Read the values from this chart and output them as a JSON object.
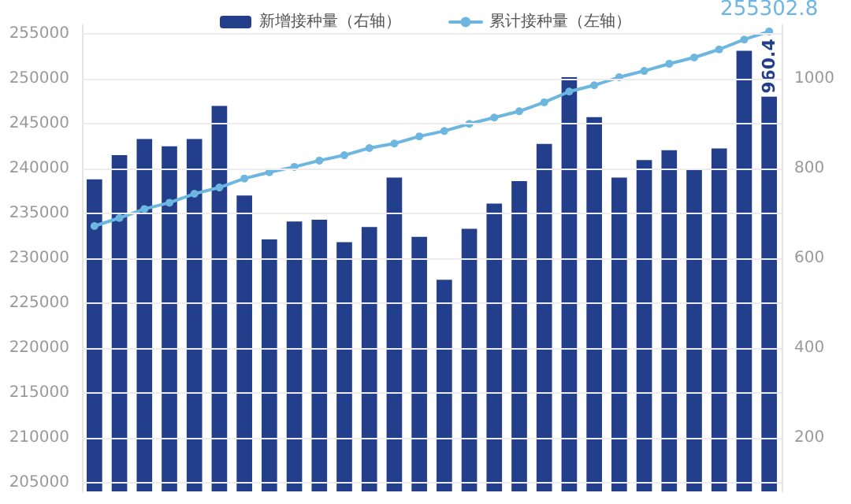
{
  "chart_data": {
    "type": "bar",
    "categories": [
      null,
      null,
      null,
      null,
      null,
      null,
      null,
      null,
      null,
      null,
      null,
      null,
      null,
      null,
      null,
      null,
      null,
      null,
      null,
      null,
      null,
      null,
      null,
      null,
      null,
      null,
      null,
      null
    ],
    "series": [
      {
        "name": "新增接种量（右轴）",
        "axis": "y2",
        "color": "#233f8c",
        "values": [
          776,
          830,
          866,
          850,
          866,
          940,
          740,
          642,
          682,
          686,
          636,
          670,
          780,
          648,
          552,
          666,
          722,
          772,
          855,
          1004,
          915,
          780,
          819,
          841,
          800,
          845,
          1063,
          960.4
        ],
        "value_labels": [
          null,
          null,
          null,
          null,
          null,
          null,
          null,
          null,
          null,
          null,
          null,
          null,
          null,
          null,
          null,
          null,
          null,
          null,
          null,
          null,
          null,
          null,
          null,
          null,
          null,
          null,
          null,
          "960.4"
        ]
      },
      {
        "name": "累计接种量（左轴）",
        "type": "line",
        "axis": "y",
        "color": "#6cb6e0",
        "values": [
          233600,
          234500,
          235500,
          236200,
          237200,
          237900,
          238900,
          239600,
          240200,
          240900,
          241500,
          242300,
          242800,
          243600,
          244200,
          245000,
          245700,
          246400,
          247400,
          248600,
          249300,
          250200,
          250900,
          251700,
          252400,
          253300,
          254400,
          255302.8
        ],
        "value_labels": [
          null,
          null,
          null,
          null,
          null,
          null,
          null,
          null,
          null,
          null,
          null,
          null,
          null,
          null,
          null,
          null,
          null,
          null,
          null,
          null,
          null,
          null,
          null,
          null,
          null,
          null,
          null,
          "255302.8"
        ]
      }
    ],
    "ylim": [
      204000,
      256000
    ],
    "yticks": [
      205000,
      210000,
      215000,
      220000,
      225000,
      230000,
      235000,
      240000,
      245000,
      250000,
      255000
    ],
    "y2lim": [
      80,
      1120
    ],
    "y2ticks": [
      200,
      400,
      600,
      800,
      1000
    ],
    "grid": "y",
    "legend": "top",
    "marker": "circle",
    "line_style": "solid"
  }
}
